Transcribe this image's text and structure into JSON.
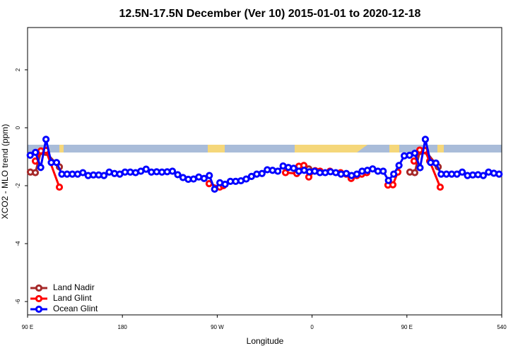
{
  "chart_data": {
    "type": "line",
    "title": "12.5N-17.5N December (Ver 10)   2015-01-01 to 2020-12-18",
    "x_label": "Longitude",
    "y_label": "XCO2 - MLO trend (ppm)",
    "xlim": [
      90,
      540
    ],
    "ylim": [
      -6.46,
      3.46
    ],
    "xticks": [
      {
        "value": 90,
        "label": "90 E"
      },
      180,
      {
        "value": 270,
        "label": "90 W"
      },
      {
        "value": 360,
        "label": "0"
      },
      {
        "value": 450,
        "label": "90 E"
      },
      540
    ],
    "yticks": [
      -6,
      -4,
      -2,
      0,
      2
    ],
    "legend": "bottom-left",
    "grid": false,
    "series": [
      {
        "name": "Land Nadir",
        "color": "#a52a2a",
        "x": [
          92.7,
          97.4,
          102.7,
          107.4,
          120.2,
          300,
          356.9,
          400,
          452.8,
          457.5,
          462.2,
          467.6,
          479.7
        ],
        "values": [
          -1.53,
          -1.55,
          -0.82,
          -0.85,
          -1.35,
          null,
          -1.42,
          null,
          -1.53,
          -1.55,
          -0.82,
          -0.8,
          -1.35
        ]
      },
      {
        "name": "Land Glint",
        "color": "#ff0000",
        "x": [
          97.4,
          102.7,
          107.4,
          120.2,
          200,
          262.3,
          272.4,
          275.8,
          300,
          334.8,
          345.5,
          347.5,
          352.2,
          356.9,
          363,
          367.6,
          377,
          387.1,
          392.4,
          397.1,
          402.5,
          407.2,
          411.9,
          420,
          432,
          436.7,
          441.4,
          450,
          456.8,
          462.2,
          466.9,
          471.6,
          481.6
        ],
        "values": [
          -1.15,
          -0.8,
          -0.78,
          -2.05,
          null,
          -1.93,
          -2.05,
          -2.0,
          null,
          -1.55,
          -1.58,
          -1.33,
          -1.3,
          -1.7,
          -1.48,
          -1.5,
          -1.5,
          -1.55,
          -1.6,
          -1.75,
          -1.65,
          -1.6,
          -1.55,
          null,
          -1.98,
          -1.97,
          -1.53,
          null,
          -1.15,
          -0.77,
          -0.78,
          -1.15,
          -2.05
        ]
      },
      {
        "name": "Ocean Glint",
        "color": "#0000ff",
        "x": [
          92.5,
          97.5,
          102.5,
          107.5,
          112.5,
          117.5,
          122.5,
          127.5,
          132.5,
          137.5,
          142.5,
          147.5,
          152.5,
          157.5,
          162.5,
          167.5,
          172.5,
          177.5,
          182.5,
          187.5,
          192.5,
          197.5,
          202.5,
          207.5,
          212.5,
          217.5,
          222.5,
          227.5,
          232.5,
          237.5,
          242.5,
          247.5,
          252.5,
          257.5,
          262.5,
          267.5,
          272.5,
          277.5,
          282.5,
          287.5,
          292.5,
          297.5,
          302.5,
          307.5,
          312.5,
          317.5,
          322.5,
          327.5,
          332.5,
          337.5,
          342.5,
          347.5,
          352.5,
          357.5,
          362.5,
          367.5,
          372.5,
          377.5,
          382.5,
          387.5,
          392.5,
          397.5,
          402.5,
          407.5,
          412.5,
          417.5,
          422.5,
          427.5,
          432.5,
          437.5,
          442.5,
          447.5,
          452.5,
          457.5,
          462.5,
          467.5,
          472.5,
          477.5,
          482.5,
          487.5,
          492.5,
          497.5,
          502.5,
          507.5,
          512.5,
          517.5,
          522.5,
          527.5,
          532.5,
          537.5
        ],
        "values": [
          -0.95,
          -0.85,
          -1.37,
          -0.4,
          -1.2,
          -1.2,
          -1.6,
          -1.6,
          -1.6,
          -1.6,
          -1.55,
          -1.65,
          -1.63,
          -1.63,
          -1.65,
          -1.53,
          -1.58,
          -1.6,
          -1.53,
          -1.53,
          -1.55,
          -1.5,
          -1.43,
          -1.53,
          -1.52,
          -1.53,
          -1.52,
          -1.5,
          -1.62,
          -1.72,
          -1.78,
          -1.77,
          -1.7,
          -1.75,
          -1.65,
          -2.12,
          -1.9,
          -1.95,
          -1.85,
          -1.85,
          -1.83,
          -1.77,
          -1.68,
          -1.6,
          -1.58,
          -1.45,
          -1.47,
          -1.5,
          -1.32,
          -1.37,
          -1.4,
          -1.5,
          -1.47,
          -1.52,
          -1.5,
          -1.55,
          -1.55,
          -1.52,
          -1.55,
          -1.6,
          -1.58,
          -1.65,
          -1.6,
          -1.5,
          -1.47,
          -1.42,
          -1.5,
          -1.5,
          -1.82,
          -1.6,
          -1.3,
          -0.97,
          -0.95,
          -0.88,
          -1.38,
          -0.4,
          -1.2,
          -1.22,
          -1.6,
          -1.6,
          -1.6,
          -1.6,
          -1.53,
          -1.65,
          -1.63,
          -1.62,
          -1.65,
          -1.53,
          -1.57,
          -1.6
        ]
      }
    ]
  }
}
